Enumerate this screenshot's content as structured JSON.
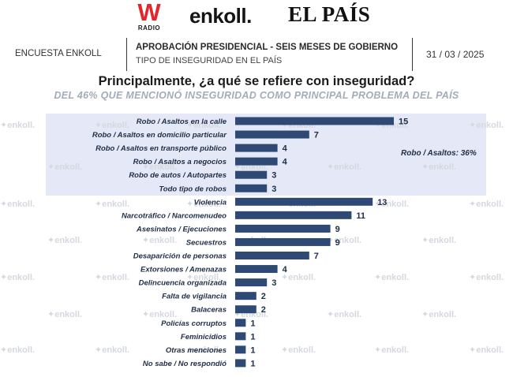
{
  "logos": {
    "w": "W",
    "w_sub": "RADIO",
    "enkoll": "enkoll.",
    "pais": "EL PAÍS"
  },
  "header": {
    "left": "ENCUESTA ENKOLL",
    "title": "APROBACIÓN PRESIDENCIAL - SEIS MESES DE GOBIERNO",
    "subtitle": "TIPO DE INSEGURIDAD EN EL PAÍS",
    "date": "31 / 03 / 2025"
  },
  "watermark": "enkoll.",
  "colors": {
    "bar": "#2e4a74",
    "band": "#e5e9f7",
    "text": "#1f2d45"
  },
  "chart_data": {
    "type": "bar",
    "orientation": "horizontal",
    "title": "Principalmente, ¿a qué se refiere con inseguridad?",
    "subtitle": "DEL 46% QUE MENCIONÓ INSEGURIDAD COMO PRINCIPAL PROBLEMA DEL PAÍS",
    "categories": [
      "Robo / Asaltos en la calle",
      "Robo / Asaltos en domicilio particular",
      "Robo / Asaltos en transporte público",
      "Robo / Asaltos a negocios",
      "Robo de autos / Autopartes",
      "Todo tipo de robos",
      "Violencia",
      "Narcotráfico / Narcomenudeo",
      "Asesinatos / Ejecuciones",
      "Secuestros",
      "Desaparición de personas",
      "Extorsiones / Amenazas",
      "Delincuencia organizada",
      "Falta de vigilancia",
      "Balaceras",
      "Policías corruptos",
      "Feminicidios",
      "Otras menciones",
      "No sabe / No respondió"
    ],
    "values": [
      15,
      7,
      4,
      4,
      3,
      3,
      13,
      11,
      9,
      9,
      7,
      4,
      3,
      2,
      2,
      1,
      1,
      1,
      1
    ],
    "group_annotation": "Robo / Asaltos: 36%",
    "xlim": [
      0,
      16
    ]
  }
}
